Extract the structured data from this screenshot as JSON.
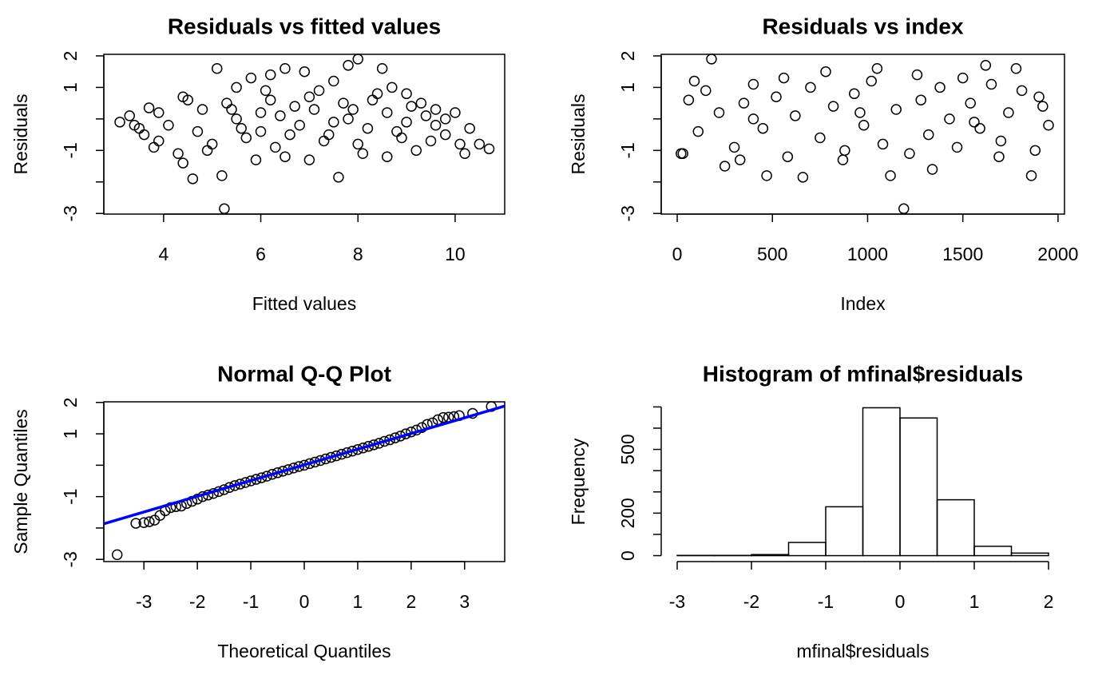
{
  "chart_data": [
    {
      "type": "scatter",
      "title": "Residuals vs fitted values",
      "xlabel": "Fitted values",
      "ylabel": "Residuals",
      "x": [
        3.1,
        3.3,
        3.4,
        3.5,
        3.6,
        3.7,
        3.8,
        3.9,
        3.9,
        4.1,
        4.3,
        4.4,
        4.4,
        4.5,
        4.6,
        4.7,
        4.8,
        4.9,
        5.0,
        5.1,
        5.2,
        5.25,
        5.3,
        5.5,
        5.6,
        5.8,
        5.9,
        6.0,
        6.2,
        6.3,
        6.5,
        6.5,
        6.7,
        6.9,
        7.0,
        7.2,
        7.4,
        7.5,
        7.6,
        7.8,
        7.9,
        8.0,
        8.1,
        8.3,
        8.5,
        8.6,
        8.7,
        8.9,
        9.0,
        9.2,
        9.3,
        9.5,
        9.6,
        9.8,
        10.0,
        10.1,
        10.2,
        10.3,
        10.5,
        10.7,
        5.5,
        6.0,
        6.4,
        6.8,
        7.1,
        7.5,
        7.8,
        8.2,
        8.6,
        9.0,
        9.4,
        9.8,
        6.2,
        7.3,
        8.4,
        5.7,
        5.4,
        6.6,
        7.7,
        8.8,
        9.6,
        6.1,
        7.0,
        8.0,
        9.1
      ],
      "values": [
        -0.1,
        0.1,
        -0.2,
        -0.3,
        -0.5,
        0.35,
        -0.9,
        0.2,
        -0.7,
        -0.2,
        -1.1,
        0.7,
        -1.4,
        0.6,
        -1.9,
        -0.4,
        0.3,
        -1.0,
        -0.8,
        1.6,
        -1.8,
        -2.85,
        0.5,
        1.0,
        -0.3,
        1.3,
        -1.3,
        0.2,
        1.4,
        -0.9,
        1.6,
        -1.2,
        0.4,
        1.5,
        -1.3,
        0.9,
        -0.5,
        1.2,
        -1.85,
        1.7,
        0.3,
        1.9,
        -1.1,
        0.6,
        1.6,
        -1.2,
        1.0,
        -0.6,
        0.8,
        -1.0,
        0.5,
        -0.7,
        0.3,
        -0.5,
        0.2,
        -0.8,
        -1.1,
        -0.3,
        -0.8,
        -0.95,
        0.0,
        -0.4,
        0.1,
        -0.2,
        0.3,
        -0.1,
        0.0,
        -0.3,
        0.2,
        -0.1,
        0.1,
        0.0,
        0.6,
        -0.7,
        0.8,
        -0.6,
        0.3,
        -0.5,
        0.5,
        -0.4,
        -0.2,
        0.9,
        0.7,
        -0.8,
        0.4
      ],
      "xlim": [
        2.77,
        11.02
      ],
      "ylim": [
        -3.02,
        2.05
      ],
      "xticks": [
        4,
        6,
        8,
        10
      ],
      "yticks": [
        {
          "value": -3,
          "label": "-3"
        },
        {
          "value": -2,
          "label": null
        },
        {
          "value": -1,
          "label": "-1"
        },
        {
          "value": 0,
          "label": null
        },
        {
          "value": 1,
          "label": "1"
        },
        {
          "value": 2,
          "label": "2"
        }
      ]
    },
    {
      "type": "scatter",
      "title": "Residuals vs index",
      "xlabel": "Index",
      "ylabel": "Residuals",
      "x": [
        20,
        30,
        180,
        1190,
        660,
        1860,
        1620,
        1780,
        1050,
        470,
        1120,
        1340,
        250,
        780,
        1500,
        60,
        110,
        150,
        220,
        300,
        350,
        400,
        450,
        520,
        580,
        620,
        700,
        750,
        820,
        880,
        930,
        980,
        1020,
        1080,
        1150,
        1220,
        1280,
        1320,
        1380,
        1430,
        1470,
        1540,
        1590,
        1650,
        1700,
        1740,
        1810,
        1880,
        1920,
        1950,
        90,
        330,
        560,
        870,
        1260,
        1690,
        1900,
        400,
        960,
        1560
      ],
      "values": [
        -1.1,
        -1.1,
        1.9,
        -2.85,
        -1.85,
        -1.8,
        1.7,
        1.6,
        1.6,
        -1.8,
        -1.8,
        -1.6,
        -1.5,
        1.5,
        1.3,
        0.6,
        -0.4,
        0.9,
        0.2,
        -0.9,
        0.5,
        1.1,
        -0.3,
        0.7,
        -1.2,
        0.1,
        1.0,
        -0.6,
        0.4,
        -1.0,
        0.8,
        -0.2,
        1.2,
        -0.8,
        0.3,
        -1.1,
        0.6,
        -0.5,
        1.0,
        0.0,
        -0.9,
        0.5,
        -0.3,
        1.1,
        -0.7,
        0.2,
        0.9,
        -1.0,
        0.4,
        -0.2,
        1.2,
        -1.3,
        1.3,
        -1.3,
        1.4,
        -1.2,
        0.7,
        0.0,
        0.2,
        -0.1
      ],
      "xlim": [
        -84,
        2034
      ],
      "ylim": [
        -3.02,
        2.05
      ],
      "xticks": [
        0,
        500,
        1000,
        1500,
        2000
      ],
      "yticks": [
        {
          "value": -3,
          "label": "-3"
        },
        {
          "value": -2,
          "label": null
        },
        {
          "value": -1,
          "label": "-1"
        },
        {
          "value": 0,
          "label": null
        },
        {
          "value": 1,
          "label": "1"
        },
        {
          "value": 2,
          "label": "2"
        }
      ]
    },
    {
      "type": "qq",
      "title": "Normal Q-Q Plot",
      "xlabel": "Theoretical Quantiles",
      "ylabel": "Sample Quantiles",
      "x": [
        -3.5,
        -3.15,
        -3.0,
        -2.9,
        -2.8,
        -2.7,
        -2.6,
        -2.5,
        -2.4,
        -2.3,
        -2.2,
        -2.1,
        -2.0,
        -1.9,
        -1.8,
        -1.7,
        -1.6,
        -1.5,
        -1.4,
        -1.3,
        -1.2,
        -1.1,
        -1.0,
        -0.9,
        -0.8,
        -0.7,
        -0.6,
        -0.5,
        -0.4,
        -0.3,
        -0.2,
        -0.1,
        0.0,
        0.1,
        0.2,
        0.3,
        0.4,
        0.5,
        0.6,
        0.7,
        0.8,
        0.9,
        1.0,
        1.1,
        1.2,
        1.3,
        1.4,
        1.5,
        1.6,
        1.7,
        1.8,
        1.9,
        2.0,
        2.1,
        2.2,
        2.3,
        2.4,
        2.5,
        2.6,
        2.7,
        2.8,
        2.9,
        3.15,
        3.5
      ],
      "values": [
        -2.85,
        -1.85,
        -1.83,
        -1.8,
        -1.75,
        -1.6,
        -1.45,
        -1.35,
        -1.32,
        -1.3,
        -1.22,
        -1.15,
        -1.08,
        -1.0,
        -0.95,
        -0.9,
        -0.84,
        -0.78,
        -0.71,
        -0.65,
        -0.6,
        -0.55,
        -0.5,
        -0.45,
        -0.4,
        -0.35,
        -0.29,
        -0.24,
        -0.19,
        -0.14,
        -0.09,
        -0.04,
        0.0,
        0.05,
        0.1,
        0.15,
        0.2,
        0.25,
        0.3,
        0.35,
        0.4,
        0.45,
        0.5,
        0.55,
        0.6,
        0.65,
        0.7,
        0.76,
        0.81,
        0.87,
        0.93,
        1.0,
        1.06,
        1.12,
        1.2,
        1.3,
        1.35,
        1.45,
        1.52,
        1.53,
        1.55,
        1.58,
        1.65,
        1.87
      ],
      "line": {
        "intercept": 0.01,
        "slope": 0.5,
        "color": "#0000ff"
      },
      "xlim": [
        -3.75,
        3.75
      ],
      "ylim": [
        -3.07,
        2.02
      ],
      "xticks": [
        -3,
        -2,
        -1,
        0,
        1,
        2,
        3
      ],
      "yticks": [
        {
          "value": -3,
          "label": "-3"
        },
        {
          "value": -2,
          "label": null
        },
        {
          "value": -1,
          "label": "-1"
        },
        {
          "value": 0,
          "label": null
        },
        {
          "value": 1,
          "label": "1"
        },
        {
          "value": 2,
          "label": "2"
        }
      ]
    },
    {
      "type": "histogram",
      "title": "Histogram of mfinal$residuals",
      "xlabel": "mfinal$residuals",
      "ylabel": "Frequency",
      "bins": [
        -3,
        -2.5,
        -2,
        -1.5,
        -1,
        -0.5,
        0,
        0.5,
        1,
        1.5,
        2
      ],
      "values": [
        1,
        1,
        5,
        62,
        230,
        696,
        648,
        263,
        44,
        12
      ],
      "xlim": [
        -3.215,
        2.215
      ],
      "ylim": [
        -28,
        724
      ],
      "xticks": [
        -3,
        -2,
        -1,
        0,
        1,
        2
      ],
      "yticks": [
        {
          "value": 0,
          "label": "0"
        },
        {
          "value": 100,
          "label": null
        },
        {
          "value": 200,
          "label": "200"
        },
        {
          "value": 300,
          "label": null
        },
        {
          "value": 400,
          "label": null
        },
        {
          "value": 500,
          "label": "500"
        },
        {
          "value": 600,
          "label": null
        },
        {
          "value": 700,
          "label": null
        }
      ]
    }
  ]
}
